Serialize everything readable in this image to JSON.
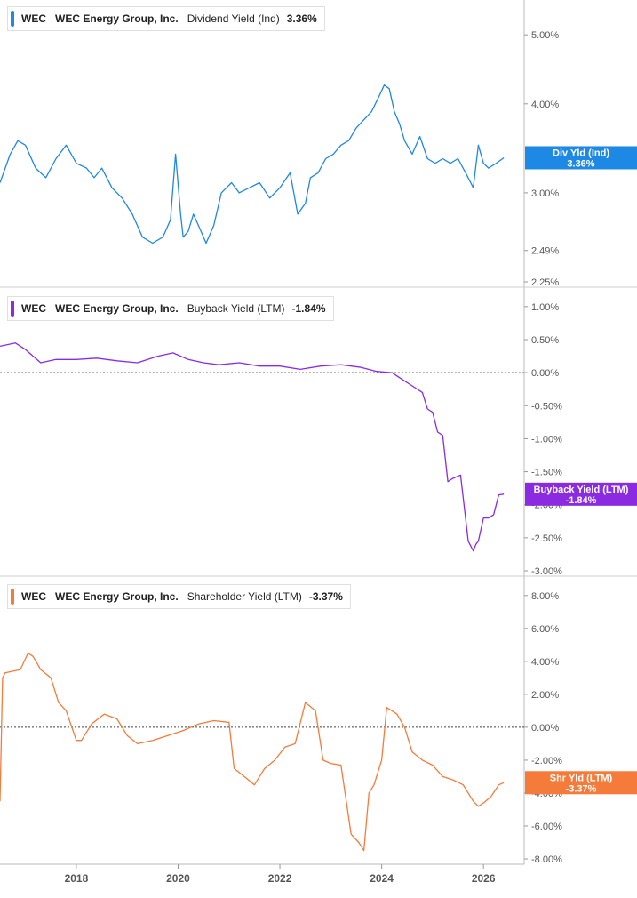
{
  "colors": {
    "dividend": "#1e88e5",
    "buyback": "#8a2be2",
    "shareholder": "#f47b3a",
    "axis_text": "#555555",
    "divider": "#cccccc"
  },
  "x_axis": {
    "tick_labels": [
      "2018",
      "2020",
      "2022",
      "2024",
      "2026"
    ],
    "tick_values": [
      2018,
      2020,
      2022,
      2024,
      2026
    ],
    "range": [
      2016.5,
      2026.8
    ]
  },
  "panels": [
    {
      "ticker": "WEC",
      "company": "WEC Energy Group, Inc.",
      "metric": "Dividend Yield (Ind)",
      "value_label": "3.36%",
      "badge_label": "Div Yld (Ind)",
      "badge_value": "3.36%",
      "color_key": "dividend"
    },
    {
      "ticker": "WEC",
      "company": "WEC Energy Group, Inc.",
      "metric": "Buyback Yield (LTM)",
      "value_label": "-1.84%",
      "badge_label": "Buyback Yield (LTM)",
      "badge_value": "-1.84%",
      "color_key": "buyback"
    },
    {
      "ticker": "WEC",
      "company": "WEC Energy Group, Inc.",
      "metric": "Shareholder Yield (LTM)",
      "value_label": "-3.37%",
      "badge_label": "Shr Yld (LTM)",
      "badge_value": "-3.37%",
      "color_key": "shareholder"
    }
  ],
  "chart_data": [
    {
      "type": "line",
      "title": "WEC Energy Group, Inc. Dividend Yield (Ind)",
      "y_scale": "log",
      "ylim": [
        2.25,
        5.5
      ],
      "y_tick_labels": [
        "5.00%",
        "4.00%",
        "3.00%",
        "2.49%",
        "2.25%"
      ],
      "y_tick_values": [
        5.0,
        4.0,
        3.0,
        2.49,
        2.25
      ],
      "zero_line": false,
      "series": [
        {
          "name": "Dividend Yield (Ind)",
          "x": [
            2016.5,
            2016.7,
            2016.85,
            2017.0,
            2017.2,
            2017.4,
            2017.6,
            2017.8,
            2018.0,
            2018.2,
            2018.35,
            2018.5,
            2018.7,
            2018.9,
            2019.1,
            2019.3,
            2019.5,
            2019.7,
            2019.85,
            2019.95,
            2020.05,
            2020.1,
            2020.2,
            2020.3,
            2020.4,
            2020.55,
            2020.7,
            2020.85,
            2020.95,
            2021.05,
            2021.2,
            2021.4,
            2021.6,
            2021.8,
            2022.0,
            2022.2,
            2022.35,
            2022.5,
            2022.6,
            2022.75,
            2022.9,
            2023.05,
            2023.2,
            2023.35,
            2023.5,
            2023.65,
            2023.8,
            2023.95,
            2024.05,
            2024.15,
            2024.25,
            2024.35,
            2024.45,
            2024.6,
            2024.75,
            2024.9,
            2025.05,
            2025.2,
            2025.35,
            2025.5,
            2025.65,
            2025.8,
            2025.9,
            2026.0,
            2026.1,
            2026.25,
            2026.4
          ],
          "values": [
            3.1,
            3.4,
            3.55,
            3.5,
            3.25,
            3.15,
            3.35,
            3.5,
            3.3,
            3.25,
            3.15,
            3.25,
            3.05,
            2.95,
            2.8,
            2.6,
            2.55,
            2.6,
            2.75,
            3.4,
            2.8,
            2.6,
            2.65,
            2.8,
            2.7,
            2.55,
            2.7,
            3.0,
            3.05,
            3.1,
            3.0,
            3.05,
            3.1,
            2.95,
            3.05,
            3.2,
            2.8,
            2.9,
            3.15,
            3.2,
            3.35,
            3.4,
            3.5,
            3.55,
            3.7,
            3.8,
            3.9,
            4.1,
            4.25,
            4.2,
            3.9,
            3.75,
            3.55,
            3.4,
            3.6,
            3.35,
            3.3,
            3.35,
            3.3,
            3.35,
            3.2,
            3.05,
            3.5,
            3.3,
            3.25,
            3.3,
            3.36
          ]
        }
      ]
    },
    {
      "type": "line",
      "title": "WEC Energy Group, Inc. Buyback Yield (LTM)",
      "ylim": [
        -3.0,
        1.2
      ],
      "y_tick_labels": [
        "1.00%",
        "0.50%",
        "0.00%",
        "-0.50%",
        "-1.00%",
        "-1.50%",
        "-2.00%",
        "-2.50%",
        "-3.00%"
      ],
      "y_tick_values": [
        1.0,
        0.5,
        0.0,
        -0.5,
        -1.0,
        -1.5,
        -2.0,
        -2.5,
        -3.0
      ],
      "zero_line": true,
      "series": [
        {
          "name": "Buyback Yield (LTM)",
          "x": [
            2016.5,
            2016.8,
            2017.0,
            2017.3,
            2017.6,
            2018.0,
            2018.4,
            2018.8,
            2019.2,
            2019.6,
            2019.9,
            2020.2,
            2020.5,
            2020.8,
            2021.2,
            2021.6,
            2022.0,
            2022.4,
            2022.8,
            2023.2,
            2023.6,
            2023.9,
            2024.2,
            2024.4,
            2024.6,
            2024.8,
            2024.9,
            2025.0,
            2025.1,
            2025.2,
            2025.3,
            2025.4,
            2025.55,
            2025.7,
            2025.8,
            2025.85,
            2025.9,
            2026.0,
            2026.1,
            2026.2,
            2026.3,
            2026.4
          ],
          "values": [
            0.4,
            0.45,
            0.35,
            0.15,
            0.2,
            0.2,
            0.22,
            0.18,
            0.15,
            0.25,
            0.3,
            0.2,
            0.15,
            0.12,
            0.15,
            0.1,
            0.1,
            0.05,
            0.1,
            0.12,
            0.08,
            0.02,
            0.0,
            -0.1,
            -0.2,
            -0.3,
            -0.55,
            -0.6,
            -0.9,
            -0.95,
            -1.65,
            -1.6,
            -1.55,
            -2.55,
            -2.7,
            -2.6,
            -2.55,
            -2.2,
            -2.2,
            -2.15,
            -1.85,
            -1.84
          ]
        }
      ]
    },
    {
      "type": "line",
      "title": "WEC Energy Group, Inc. Shareholder Yield (LTM)",
      "ylim": [
        -8.0,
        8.8
      ],
      "y_tick_labels": [
        "8.00%",
        "6.00%",
        "4.00%",
        "2.00%",
        "0.00%",
        "-2.00%",
        "-4.00%",
        "-6.00%",
        "-8.00%"
      ],
      "y_tick_values": [
        8.0,
        6.0,
        4.0,
        2.0,
        0.0,
        -2.0,
        -4.0,
        -6.0,
        -8.0
      ],
      "zero_line": true,
      "series": [
        {
          "name": "Shareholder Yield (LTM)",
          "x": [
            2016.5,
            2016.55,
            2016.6,
            2016.9,
            2017.05,
            2017.15,
            2017.3,
            2017.5,
            2017.65,
            2017.8,
            2018.0,
            2018.1,
            2018.3,
            2018.55,
            2018.8,
            2019.0,
            2019.2,
            2019.5,
            2019.8,
            2020.1,
            2020.4,
            2020.7,
            2021.0,
            2021.1,
            2021.3,
            2021.5,
            2021.7,
            2021.9,
            2022.1,
            2022.3,
            2022.5,
            2022.7,
            2022.85,
            2023.0,
            2023.2,
            2023.4,
            2023.55,
            2023.65,
            2023.75,
            2023.85,
            2024.0,
            2024.1,
            2024.3,
            2024.45,
            2024.6,
            2024.8,
            2025.0,
            2025.2,
            2025.4,
            2025.6,
            2025.8,
            2025.9,
            2026.0,
            2026.15,
            2026.3,
            2026.4
          ],
          "values": [
            -4.5,
            3.0,
            3.3,
            3.5,
            4.5,
            4.3,
            3.5,
            3.0,
            1.5,
            1.0,
            -0.8,
            -0.8,
            0.2,
            0.8,
            0.5,
            -0.5,
            -1.0,
            -0.8,
            -0.5,
            -0.2,
            0.2,
            0.4,
            0.3,
            -2.5,
            -3.0,
            -3.5,
            -2.5,
            -2.0,
            -1.2,
            -1.0,
            1.5,
            1.0,
            -2.0,
            -2.2,
            -2.3,
            -6.5,
            -7.0,
            -7.5,
            -4.0,
            -3.5,
            -2.0,
            1.2,
            0.8,
            0.0,
            -1.5,
            -2.0,
            -2.3,
            -3.0,
            -3.2,
            -3.5,
            -4.5,
            -4.8,
            -4.6,
            -4.2,
            -3.5,
            -3.37
          ]
        }
      ]
    }
  ]
}
